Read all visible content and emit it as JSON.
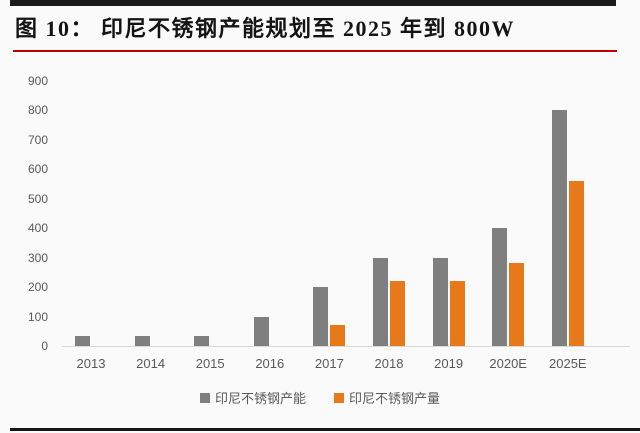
{
  "page": {
    "title": "图 10：  印尼不锈钢产能规划至 2025 年到 800W",
    "title_color": "#141414",
    "top_rule_color": "#1A1A1A",
    "title_rule_color": "#C00000",
    "bottom_rule_color": "#161616",
    "background_color": "#FBFAFB"
  },
  "chart_data": {
    "type": "bar",
    "title": "印尼不锈钢产能规划至 2025 年到 800W",
    "categories": [
      "2013",
      "2014",
      "2015",
      "2016",
      "2017",
      "2018",
      "2019",
      "2020E",
      "2025E"
    ],
    "series": [
      {
        "name": "印尼不锈钢产能",
        "color": "#7F7F7F",
        "values": [
          35,
          35,
          35,
          100,
          200,
          300,
          300,
          400,
          800
        ]
      },
      {
        "name": "印尼不锈钢产量",
        "color": "#E8791A",
        "values": [
          null,
          null,
          null,
          null,
          70,
          220,
          220,
          280,
          560
        ]
      }
    ],
    "xlabel": "",
    "ylabel": "",
    "ylim": [
      0,
      900
    ],
    "ytick_step": 100,
    "yticks": [
      0,
      100,
      200,
      300,
      400,
      500,
      600,
      700,
      800,
      900
    ],
    "grid": false,
    "legend_position": "bottom",
    "axis_color": "#D9D9D9",
    "tick_label_color": "#595959"
  }
}
